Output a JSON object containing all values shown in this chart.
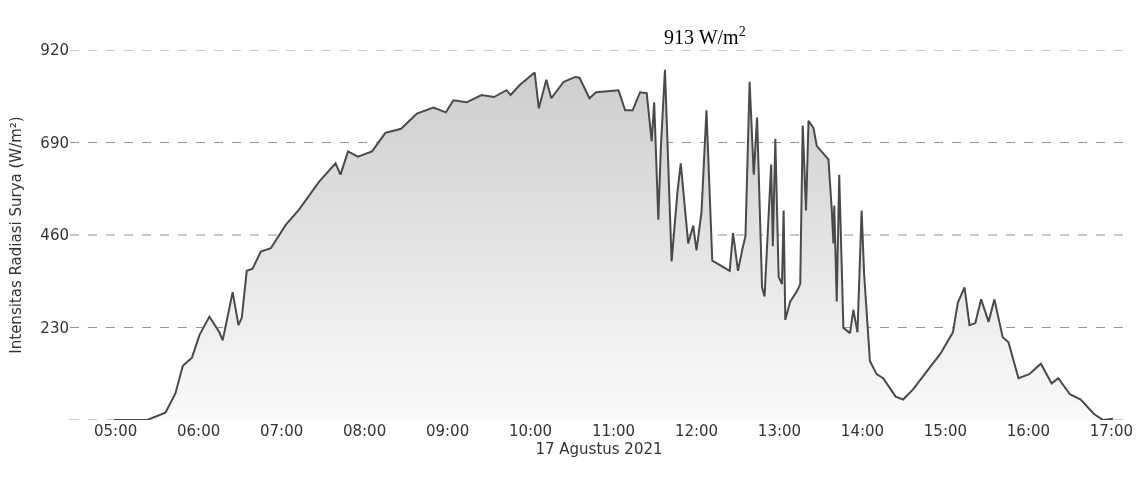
{
  "chart_data": {
    "type": "area",
    "xlabel": "17 Agustus 2021",
    "ylabel": "Intensitas Radiasi Surya (W/m²)",
    "annotations": [
      "913 W/m$^{2}$"
    ],
    "xlim": [
      4.45,
      17.2
    ],
    "xticks": [
      {
        "value": 5,
        "label": "05:00"
      },
      {
        "value": 6,
        "label": "06:00"
      },
      {
        "value": 7,
        "label": "07:00"
      },
      {
        "value": 8,
        "label": "08:00"
      },
      {
        "value": 9,
        "label": "09:00"
      },
      {
        "value": 10,
        "label": "10:00"
      },
      {
        "value": 11,
        "label": "11:00"
      },
      {
        "value": 12,
        "label": "12:00"
      },
      {
        "value": 13,
        "label": "13:00"
      },
      {
        "value": 14,
        "label": "14:00"
      },
      {
        "value": 15,
        "label": "15:00"
      },
      {
        "value": 16,
        "label": "16:00"
      },
      {
        "value": 17,
        "label": "17:00"
      }
    ],
    "ylim": [
      0,
      920
    ],
    "yticks": [
      {
        "value": 0,
        "label": null
      },
      230,
      460,
      690,
      920
    ],
    "grid": "y",
    "x": [
      4.98,
      5.38,
      5.6,
      5.72,
      5.81,
      5.92,
      6.01,
      6.13,
      6.25,
      6.29,
      6.41,
      6.48,
      6.52,
      6.58,
      6.65,
      6.75,
      6.87,
      7.05,
      7.21,
      7.45,
      7.65,
      7.71,
      7.8,
      7.92,
      8.09,
      8.25,
      8.44,
      8.63,
      8.83,
      8.98,
      9.07,
      9.23,
      9.41,
      9.56,
      9.71,
      9.76,
      9.87,
      10.05,
      10.1,
      10.19,
      10.25,
      10.4,
      10.54,
      10.59,
      10.71,
      10.79,
      11.06,
      11.14,
      11.23,
      11.32,
      11.4,
      11.46,
      11.49,
      11.54,
      11.57,
      11.62,
      11.7,
      11.77,
      11.81,
      11.9,
      11.96,
      12.0,
      12.06,
      12.12,
      12.19,
      12.4,
      12.44,
      12.5,
      12.55,
      12.59,
      12.64,
      12.69,
      12.73,
      12.79,
      12.82,
      12.9,
      12.92,
      12.95,
      12.99,
      13.03,
      13.05,
      13.07,
      13.13,
      13.21,
      13.25,
      13.28,
      13.32,
      13.35,
      13.41,
      13.45,
      13.59,
      13.63,
      13.65,
      13.66,
      13.69,
      13.72,
      13.77,
      13.85,
      13.89,
      13.94,
      13.99,
      14.02,
      14.09,
      14.17,
      14.25,
      14.4,
      14.49,
      14.61,
      14.78,
      14.94,
      15.09,
      15.15,
      15.23,
      15.29,
      15.36,
      15.43,
      15.52,
      15.59,
      15.69,
      15.76,
      15.88,
      16.01,
      16.15,
      16.28,
      16.36,
      16.5,
      16.63,
      16.79,
      16.9,
      17.02
    ],
    "series": [
      {
        "color": "#4a4a4a",
        "values": [
          0,
          0,
          18,
          66,
          135,
          155,
          211,
          257,
          218,
          198,
          318,
          236,
          254,
          371,
          376,
          419,
          427,
          485,
          523,
          592,
          638,
          610,
          668,
          655,
          668,
          714,
          724,
          762,
          777,
          765,
          795,
          790,
          808,
          803,
          820,
          808,
          833,
          864,
          775,
          846,
          800,
          841,
          853,
          851,
          800,
          815,
          820,
          770,
          770,
          815,
          813,
          693,
          790,
          498,
          676,
          871,
          394,
          566,
          638,
          439,
          483,
          422,
          516,
          770,
          396,
          371,
          465,
          371,
          422,
          457,
          841,
          610,
          752,
          330,
          307,
          635,
          432,
          699,
          356,
          338,
          521,
          249,
          295,
          320,
          338,
          732,
          521,
          744,
          726,
          681,
          648,
          523,
          439,
          533,
          295,
          610,
          229,
          216,
          274,
          218,
          521,
          363,
          147,
          114,
          104,
          58,
          51,
          76,
          122,
          165,
          218,
          292,
          330,
          236,
          241,
          300,
          244,
          300,
          206,
          193,
          104,
          114,
          140,
          91,
          104,
          64,
          51,
          15,
          0,
          3
        ]
      }
    ]
  }
}
